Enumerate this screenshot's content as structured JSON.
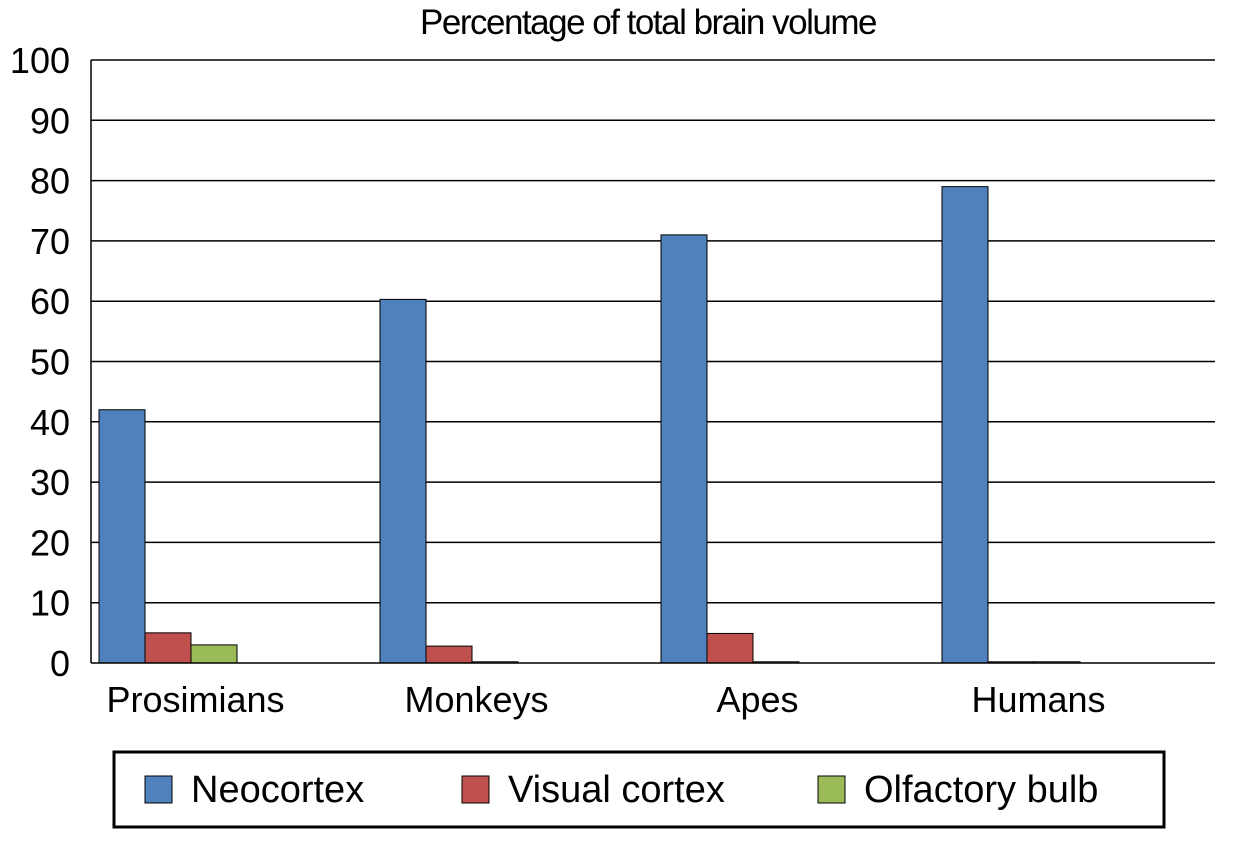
{
  "chart_data": {
    "type": "bar",
    "title": "Percentage of total brain volume",
    "xlabel": "",
    "ylabel": "",
    "categories": [
      "Prosimians",
      "Monkeys",
      "Apes",
      "Humans"
    ],
    "ylim": [
      0,
      100
    ],
    "yticks": [
      "0",
      "10",
      "20",
      "30",
      "40",
      "50",
      "60",
      "70",
      "80",
      "90",
      "100"
    ],
    "grid": true,
    "legend_position": "bottom",
    "series": [
      {
        "name": "Neocortex",
        "color": "#4f81bd",
        "values": [
          42,
          60.3,
          71,
          79
        ]
      },
      {
        "name": "Visual cortex",
        "color": "#c0504d",
        "values": [
          5,
          2.8,
          4.9,
          0.2
        ]
      },
      {
        "name": "Olfactory bulb",
        "color": "#9bbb59",
        "values": [
          3,
          0.2,
          0.2,
          0.2
        ]
      }
    ]
  }
}
